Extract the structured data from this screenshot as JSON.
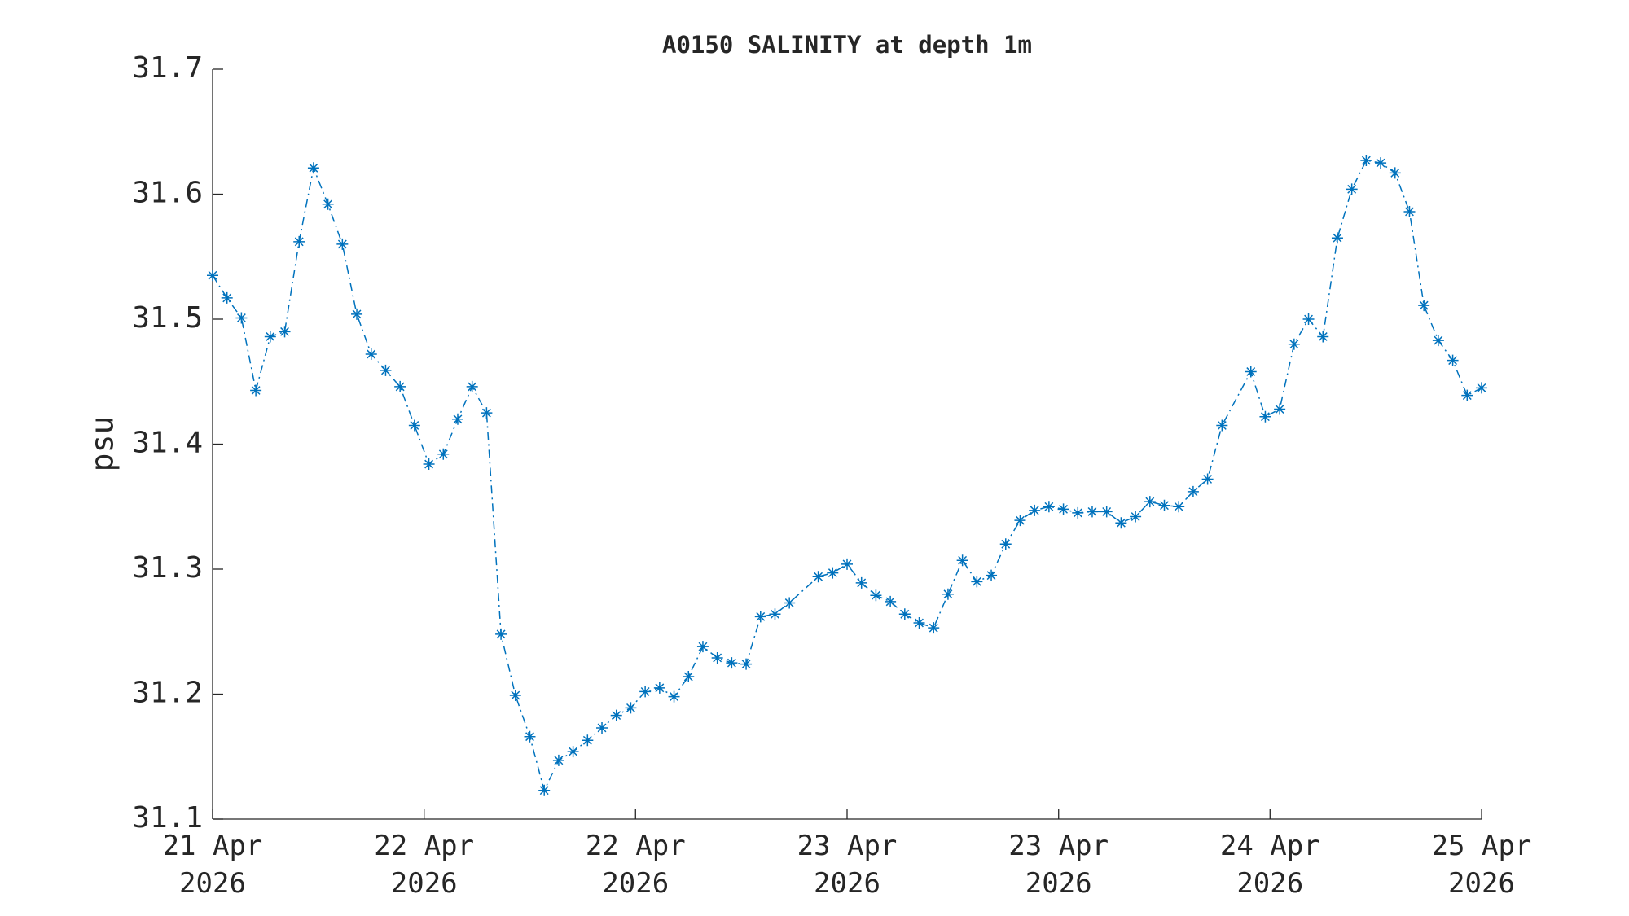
{
  "chart_data": {
    "type": "line",
    "title": "A0150 SALINITY at depth 1m",
    "y_label": "psu",
    "x": [
      0,
      1,
      2,
      3,
      4,
      5,
      6,
      7,
      8,
      9,
      10,
      11,
      12,
      13,
      14,
      15,
      16,
      17,
      18,
      19,
      20,
      21,
      22,
      23,
      24,
      25,
      26,
      27,
      28,
      29,
      30,
      31,
      32,
      33,
      34,
      35,
      36,
      37,
      38,
      39,
      40,
      42,
      43,
      44,
      45,
      46,
      47,
      48,
      49,
      50,
      51,
      52,
      53,
      54,
      55,
      56,
      57,
      58,
      59,
      60,
      61,
      62,
      63,
      64,
      65,
      66,
      67,
      68,
      69,
      70,
      72,
      73,
      74,
      75,
      76,
      77,
      78,
      79,
      80,
      81,
      82,
      83,
      84,
      85,
      86,
      87,
      88
    ],
    "series": [
      {
        "name": "SALINITY",
        "color": "#0072bd",
        "values": [
          31.535,
          31.517,
          31.501,
          31.443,
          31.486,
          31.49,
          31.562,
          31.621,
          31.592,
          31.56,
          31.504,
          31.472,
          31.459,
          31.446,
          31.415,
          31.384,
          31.392,
          31.42,
          31.446,
          31.425,
          31.248,
          31.199,
          31.166,
          31.123,
          31.147,
          31.154,
          31.163,
          31.173,
          31.183,
          31.189,
          31.202,
          31.205,
          31.198,
          31.214,
          31.238,
          31.229,
          31.225,
          31.224,
          31.262,
          31.264,
          31.273,
          31.294,
          31.297,
          31.304,
          31.289,
          31.279,
          31.274,
          31.264,
          31.257,
          31.253,
          31.28,
          31.307,
          31.29,
          31.295,
          31.32,
          31.339,
          31.347,
          31.35,
          31.348,
          31.345,
          31.346,
          31.346,
          31.337,
          31.342,
          31.354,
          31.351,
          31.35,
          31.362,
          31.372,
          31.415,
          31.458,
          31.422,
          31.428,
          31.48,
          31.5,
          31.486,
          31.565,
          31.604,
          31.627,
          31.625,
          31.617,
          31.586,
          31.511,
          31.483,
          31.467,
          31.439,
          31.445
        ]
      }
    ],
    "xlim": [
      0,
      88
    ],
    "xticks": [
      {
        "value": 0,
        "label": "21 Apr 2026"
      },
      {
        "value": 14.67,
        "label": "22 Apr 2026"
      },
      {
        "value": 29.33,
        "label": "22 Apr 2026"
      },
      {
        "value": 44,
        "label": "23 Apr 2026"
      },
      {
        "value": 58.67,
        "label": "23 Apr 2026"
      },
      {
        "value": 73.33,
        "label": "24 Apr 2026"
      },
      {
        "value": 88,
        "label": "25 Apr 2026"
      }
    ],
    "ylim": [
      31.1,
      31.7
    ],
    "yticks": [
      31.1,
      31.2,
      31.3,
      31.4,
      31.5,
      31.6,
      31.7
    ],
    "grid": false
  }
}
